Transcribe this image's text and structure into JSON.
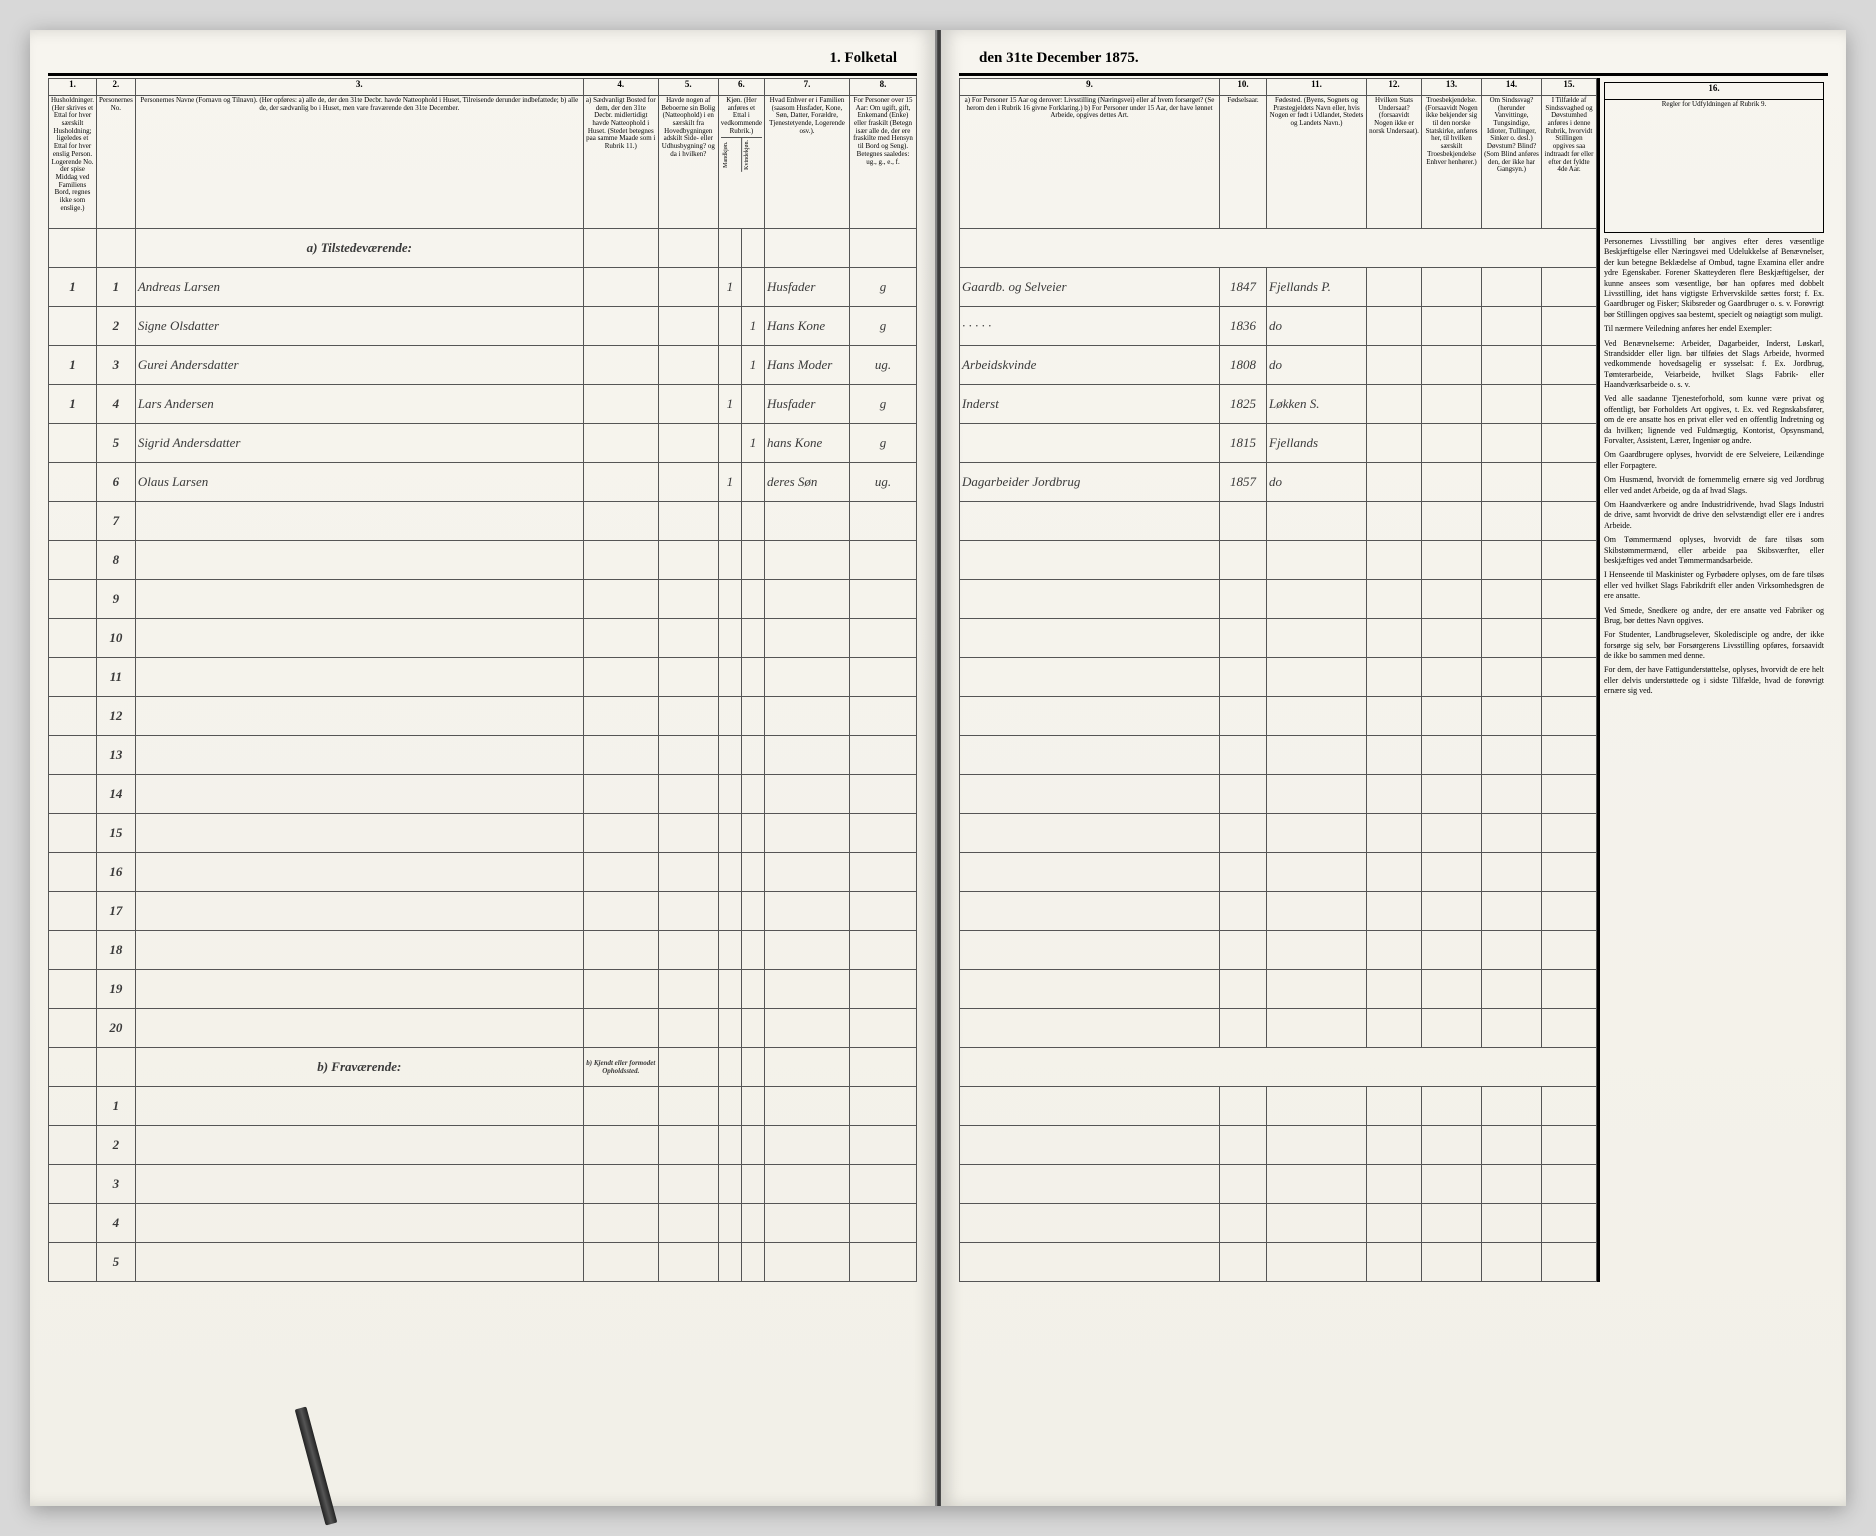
{
  "title_left": "1.  Folketal",
  "title_right": "den 31te December 1875.",
  "columns_left": {
    "c1": "1.",
    "c2": "2.",
    "c3": "3.",
    "c4": "4.",
    "c5": "5.",
    "c6": "6.",
    "c7": "7.",
    "c8": "8."
  },
  "columns_right": {
    "c9": "9.",
    "c10": "10.",
    "c11": "11.",
    "c12": "12.",
    "c13": "13.",
    "c14": "14.",
    "c15": "15.",
    "c16": "16."
  },
  "headers_left": {
    "h1": "Husholdninger. (Her skrives et Ettal for hver særskilt Husholdning; ligeledes et Ettal for hver enslig Person. Logerende No. der spise Middag ved Familiens Bord, regnes ikke som enslige.)",
    "h2": "Personernes No.",
    "h3": "Personernes Navne (Fornavn og Tilnavn). (Her opføres: a) alle de, der den 31te Decbr. havde Natteophold i Huset, Tilreisende derunder indbefattede; b) alle de, der sædvanlig bo i Huset, men vare fraværende den 31te December.",
    "h4": "a) Sædvanligt Bosted for dem, der den 31te Decbr. midlertidigt havde Natteophold i Huset. (Stedet betegnes paa samme Maade som i Rubrik 11.)",
    "h5": "Havde nogen af Beboerne sin Bolig (Natteophold) i en særskilt fra Hovedbygningen adskilt Side- eller Udhusbygning? og da i hvilken?",
    "h6": "Kjøn. (Her anføres et Ettal i vedkommende Rubrik.)",
    "h6a": "Mandkjøn.",
    "h6b": "Kvindekjøn.",
    "h7": "Hvad Enhver er i Familien (saasom Husfader, Kone, Søn, Datter, Forældre, Tjenestetyende, Logerende osv.).",
    "h8": "For Personer over 15 Aar: Om ugift, gift, Enkemand (Enke) eller fraskilt (Betegn især alle de, der ere fraskilte med Hensyn til Bord og Seng). Betegnes saaledes: ug., g., e., f."
  },
  "headers_right": {
    "h9": "a) For Personer 15 Aar og derover: Livsstilling (Næringsvei) eller af hvem forsørget? (Se herom den i Rubrik 16 givne Forklaring.) b) For Personer under 15 Aar, der have lønnet Arbeide, opgives dettes Art.",
    "h10": "Fødselsaar.",
    "h11": "Fødested. (Byens, Sognets og Præstegjeldets Navn eller, hvis Nogen er født i Udlandet, Stedets og Landets Navn.)",
    "h12": "Hvilken Stats Undersaat? (forsaavidt Nogen ikke er norsk Undersaat).",
    "h13": "Troesbekjendelse. (Forsaavidt Nogen ikke bekjender sig til den norske Statskirke, anføres her, til hvilken særskilt Troesbekjendelse Enhver henhører.)",
    "h14": "Om Sindssvag? (herunder Vanvittinge, Tungsindige, Idioter, Tullinger, Sinker o. desl.) Døvstum? Blind? (Som Blind anføres den, der ikke har Gangsyn.)",
    "h15": "I Tilfælde af Sindssvaghed og Døvstumhed anføres i denne Rubrik, hvorvidt Stillingen opgives saa indtraadt før eller efter det fyldte 4de Aar.",
    "h16": "Regler for Udfyldningen af Rubrik 9."
  },
  "section_a": "a) Tilstedeværende:",
  "section_b": "b) Fraværende:",
  "section_b_note": "b) Kjendt eller formodet Opholdssted.",
  "rows": [
    {
      "n": "1",
      "hh": "1",
      "name": "Andreas Larsen",
      "c4": "",
      "c5": "",
      "c6a": "1",
      "c6b": "",
      "c7": "Husfader",
      "c8": "g",
      "c9": "Gaardb. og Selveier",
      "c10": "1847",
      "c11": "Fjellands P.",
      "c12": "",
      "c13": "",
      "c14": "",
      "c15": ""
    },
    {
      "n": "2",
      "hh": "",
      "name": "Signe Olsdatter",
      "c4": "",
      "c5": "",
      "c6a": "",
      "c6b": "1",
      "c7": "Hans Kone",
      "c8": "g",
      "c9": "· · · · ·",
      "c10": "1836",
      "c11": "do",
      "c12": "",
      "c13": "",
      "c14": "",
      "c15": ""
    },
    {
      "n": "3",
      "hh": "1",
      "name": "Gurei Andersdatter",
      "c4": "",
      "c5": "",
      "c6a": "",
      "c6b": "1",
      "c7": "Hans Moder",
      "c8": "ug.",
      "c9": "Arbeidskvinde",
      "c10": "1808",
      "c11": "do",
      "c12": "",
      "c13": "",
      "c14": "",
      "c15": ""
    },
    {
      "n": "4",
      "hh": "1",
      "name": "Lars Andersen",
      "c4": "",
      "c5": "",
      "c6a": "1",
      "c6b": "",
      "c7": "Husfader",
      "c8": "g",
      "c9": "Inderst",
      "c10": "1825",
      "c11": "Løkken S.",
      "c12": "",
      "c13": "",
      "c14": "",
      "c15": ""
    },
    {
      "n": "5",
      "hh": "",
      "name": "Sigrid Andersdatter",
      "c4": "",
      "c5": "",
      "c6a": "",
      "c6b": "1",
      "c7": "hans Kone",
      "c8": "g",
      "c9": "",
      "c10": "1815",
      "c11": "Fjellands",
      "c12": "",
      "c13": "",
      "c14": "",
      "c15": ""
    },
    {
      "n": "6",
      "hh": "",
      "name": "Olaus Larsen",
      "c4": "",
      "c5": "",
      "c6a": "1",
      "c6b": "",
      "c7": "deres Søn",
      "c8": "ug.",
      "c9": "Dagarbeider Jordbrug",
      "c10": "1857",
      "c11": "do",
      "c12": "",
      "c13": "",
      "c14": "",
      "c15": ""
    }
  ],
  "empty_rows": [
    "7",
    "8",
    "9",
    "10",
    "11",
    "12",
    "13",
    "14",
    "15",
    "16",
    "17",
    "18",
    "19",
    "20"
  ],
  "absent_rows": [
    "1",
    "2",
    "3",
    "4",
    "5"
  ],
  "sidebar": {
    "p1": "Personernes Livsstilling bør angives efter deres væsentlige Beskjæftigelse eller Næringsvei med Udelukkelse af Benævnelser, der kun betegne Beklædelse af Ombud, tagne Examina eller andre ydre Egenskaber. Forener Skatteyderen flere Beskjæftigelser, der kunne ansees som væsentlige, bør han opføres med dobbelt Livsstilling, idet hans vigtigste Erhvervskilde sættes forst; f. Ex. Gaardbruger og Fisker; Skibsreder og Gaardbruger o. s. v. Forøvrigt bør Stillingen opgives saa bestemt, specielt og nøiagtigt som muligt.",
    "p2": "Til nærmere Veiledning anføres her endel Exempler:",
    "p3": "Ved Benævnelserne: Arbeider, Dagarbeider, Inderst, Løskarl, Strandsidder eller lign. bør tilføies det Slags Arbeide, hvormed vedkommende hovedsagelig er sysselsat: f. Ex. Jordbrug, Tømterarbeide, Veiarbeide, hvilket Slags Fabrik- eller Haandværksarbeide o. s. v.",
    "p4": "Ved alle saadanne Tjenesteforhold, som kunne være privat og offentligt, bør Forholdets Art opgives, t. Ex. ved Regnskabsfører, om de ere ansatte hos en privat eller ved en offentlig Indretning og da hvilken; lignende ved Fuldmægtig, Kontorist, Opsynsmand, Forvalter, Assistent, Lærer, Ingeniør og andre.",
    "p5": "Om Gaardbrugere oplyses, hvorvidt de ere Selveiere, Leilændinge eller Forpagtere.",
    "p6": "Om Husmænd, hvorvidt de fornemmelig ernære sig ved Jordbrug eller ved andet Arbeide, og da af hvad Slags.",
    "p7": "Om Haandværkere og andre Industridrivende, hvad Slags Industri de drive, samt hvorvidt de drive den selvstændigt eller ere i andres Arbeide.",
    "p8": "Om Tømmermænd oplyses, hvorvidt de fare tilsøs som Skibstømmermænd, eller arbeide paa Skibsværfter, eller beskjæftiges ved andet Tømmermandsarbeide.",
    "p9": "I Henseende til Maskinister og Fyrbødere oplyses, om de fare tilsøs eller ved hvilket Slags Fabrikdrift eller anden Virksomhedsgren de ere ansatte.",
    "p10": "Ved Smede, Snedkere og andre, der ere ansatte ved Fabriker og Brug, bør dettes Navn opgives.",
    "p11": "For Studenter, Landbrugselever, Skoledisciple og andre, der ikke forsørge sig selv, bør Forsørgerens Livsstilling opføres, forsaavidt de ikke bo sammen med denne.",
    "p12": "For dem, der have Fattigunderstøttelse, oplyses, hvorvidt de ere helt eller delvis understøttede og i sidste Tilfælde, hvad de forøvrigt ernære sig ved."
  },
  "colors": {
    "paper": "#f5f3ed",
    "line": "#000000",
    "ink": "#3a3a3a"
  }
}
